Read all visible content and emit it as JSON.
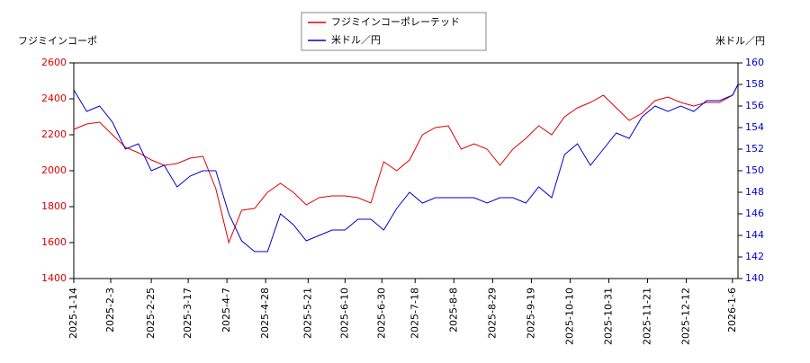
{
  "chart_data": {
    "type": "line",
    "y_label": "フジミインコーポ",
    "y2_label": "米ドル／円",
    "x": [
      "2025-1-14",
      "2025-1-21",
      "2025-1-28",
      "2025-2-4",
      "2025-2-11",
      "2025-2-18",
      "2025-2-25",
      "2025-3-4",
      "2025-3-11",
      "2025-3-18",
      "2025-3-25",
      "2025-4-1",
      "2025-4-8",
      "2025-4-15",
      "2025-4-22",
      "2025-4-29",
      "2025-5-6",
      "2025-5-13",
      "2025-5-20",
      "2025-5-27",
      "2025-6-3",
      "2025-6-10",
      "2025-6-17",
      "2025-6-24",
      "2025-7-1",
      "2025-7-8",
      "2025-7-15",
      "2025-7-22",
      "2025-7-29",
      "2025-8-5",
      "2025-8-12",
      "2025-8-19",
      "2025-8-26",
      "2025-9-2",
      "2025-9-9",
      "2025-9-16",
      "2025-9-23",
      "2025-9-30",
      "2025-10-7",
      "2025-10-14",
      "2025-10-21",
      "2025-10-28",
      "2025-11-4",
      "2025-11-11",
      "2025-11-18",
      "2025-11-25",
      "2025-12-2",
      "2025-12-9",
      "2025-12-16",
      "2025-12-23",
      "2025-12-30",
      "2026-1-6",
      "2026-1-9"
    ],
    "series": [
      {
        "name": "フジミインコーポレーテッド",
        "color": "#dd0000",
        "values": [
          2230,
          2260,
          2270,
          2200,
          2130,
          2100,
          2060,
          2030,
          2040,
          2070,
          2080,
          1900,
          1600,
          1780,
          1790,
          1880,
          1930,
          1880,
          1810,
          1850,
          1860,
          1860,
          1850,
          1820,
          2050,
          2000,
          2060,
          2200,
          2240,
          2250,
          2120,
          2150,
          2120,
          2030,
          2120,
          2180,
          2250,
          2200,
          2300,
          2350,
          2380,
          2420,
          2350,
          2280,
          2320,
          2390,
          2410,
          2380,
          2360,
          2380,
          2380,
          2420,
          2480
        ]
      },
      {
        "name": "米ドル／円",
        "color": "#0000cc",
        "axis": "y2",
        "values": [
          157.5,
          155.5,
          156,
          154.5,
          152,
          152.5,
          150,
          150.5,
          148.5,
          149.5,
          150,
          150,
          146,
          143.5,
          142.5,
          142.5,
          146,
          145,
          143.5,
          144,
          144.5,
          144.5,
          145.5,
          145.5,
          144.5,
          146.5,
          148,
          147,
          147.5,
          147.5,
          147.5,
          147.5,
          147,
          147.5,
          147.5,
          147,
          148.5,
          147.5,
          151.5,
          152.5,
          150.5,
          152,
          153.5,
          153,
          155,
          156,
          155.5,
          156,
          155.5,
          156.5,
          156.5,
          157,
          158
        ]
      }
    ],
    "xlim": [
      "2025-1-14",
      "2026-1-9"
    ],
    "xticks": [
      "2025-1-14",
      "2025-2-3",
      "2025-2-25",
      "2025-3-17",
      "2025-4-7",
      "2025-4-28",
      "2025-5-21",
      "2025-6-10",
      "2025-6-30",
      "2025-7-18",
      "2025-8-8",
      "2025-8-29",
      "2025-9-19",
      "2025-10-10",
      "2025-10-31",
      "2025-11-21",
      "2025-12-12",
      "2026-1-6"
    ],
    "ylim": [
      1400,
      2600
    ],
    "yticks": [
      1400,
      1600,
      1800,
      2000,
      2200,
      2400,
      2600
    ],
    "y2lim": [
      140,
      160
    ],
    "y2ticks": [
      140,
      142,
      144,
      146,
      148,
      150,
      152,
      154,
      156,
      158,
      160
    ]
  }
}
